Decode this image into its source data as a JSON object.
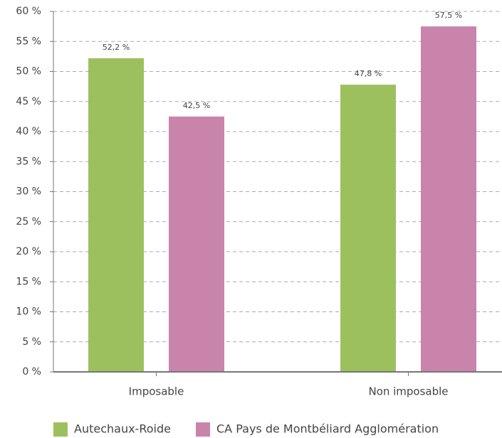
{
  "chart_data": {
    "type": "bar",
    "categories": [
      "Imposable",
      "Non imposable"
    ],
    "series": [
      {
        "name": "Autechaux-Roide",
        "color": "#9dc05f",
        "values": [
          52.2,
          47.8
        ],
        "value_labels": [
          "52,2 %",
          "47,8 %"
        ]
      },
      {
        "name": "CA Pays de Montbéliard Agglomération",
        "color": "#c984ab",
        "values": [
          42.5,
          57.5
        ],
        "value_labels": [
          "42,5 %",
          "57,5 %"
        ]
      }
    ],
    "ylim": [
      0,
      60
    ],
    "yticks": [
      {
        "value": 0,
        "label": "0 %"
      },
      {
        "value": 5,
        "label": "5 %"
      },
      {
        "value": 10,
        "label": "10 %"
      },
      {
        "value": 15,
        "label": "15 %"
      },
      {
        "value": 20,
        "label": "20 %"
      },
      {
        "value": 25,
        "label": "25 %"
      },
      {
        "value": 30,
        "label": "30 %"
      },
      {
        "value": 35,
        "label": "35 %"
      },
      {
        "value": 40,
        "label": "40 %"
      },
      {
        "value": 45,
        "label": "45 %"
      },
      {
        "value": 50,
        "label": "50 %"
      },
      {
        "value": 55,
        "label": "55 %"
      },
      {
        "value": 60,
        "label": "60 %"
      }
    ],
    "grid": true,
    "legend": "bottom"
  }
}
